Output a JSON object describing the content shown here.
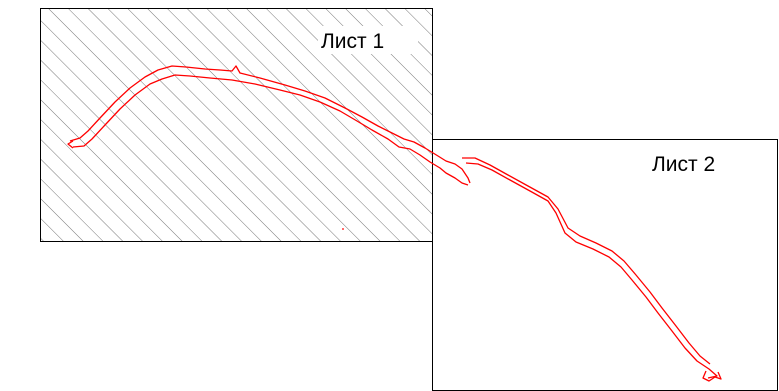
{
  "sheets": [
    {
      "label": "Лист 1",
      "fill": "hatched"
    },
    {
      "label": "Лист 2",
      "fill": "none"
    }
  ],
  "colors": {
    "route": "#ff0000",
    "frame": "#000000",
    "hatch": "#555555",
    "background": "#ffffff"
  }
}
